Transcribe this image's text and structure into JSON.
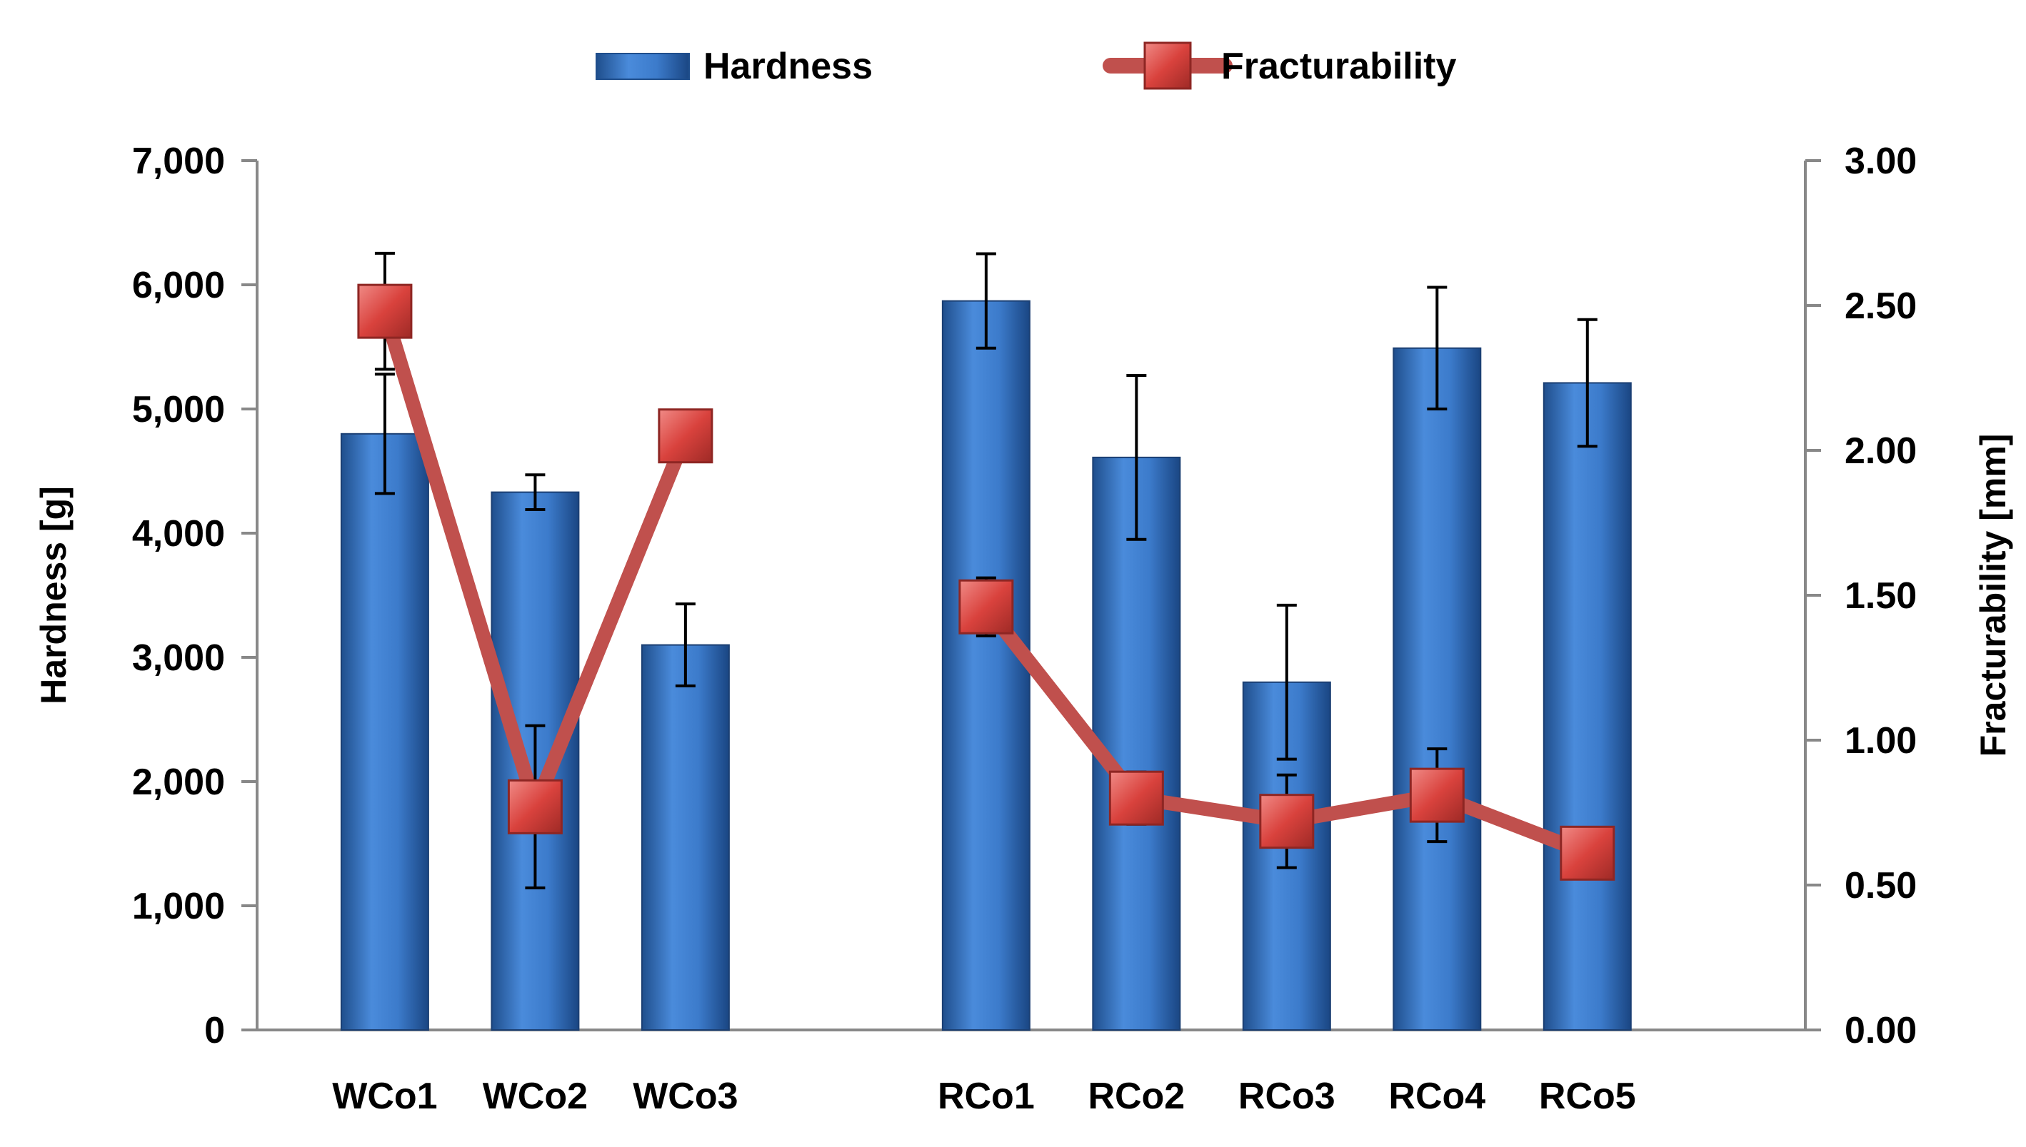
{
  "chart_data": {
    "type": "bar",
    "categories": [
      "WCo1",
      "WCo2",
      "WCo3",
      "",
      "RCo1",
      "RCo2",
      "RCo3",
      "RCo4",
      "RCo5"
    ],
    "series": [
      {
        "name": "Hardness",
        "kind": "bar",
        "axis": "left",
        "color": "#3A78C8",
        "values": [
          4800,
          4330,
          3100,
          null,
          5870,
          4610,
          2800,
          5490,
          5210
        ],
        "errors": [
          480,
          140,
          330,
          null,
          380,
          660,
          620,
          490,
          510
        ]
      },
      {
        "name": "Fracturability",
        "kind": "line",
        "axis": "right",
        "color": "#C0504D",
        "values": [
          2.48,
          0.77,
          2.05,
          null,
          1.46,
          0.8,
          0.72,
          0.81,
          0.61
        ],
        "errors": [
          0.2,
          0.28,
          0.08,
          null,
          0.1,
          0.09,
          0.16,
          0.16,
          0.07
        ]
      }
    ],
    "left_axis": {
      "label": "Hardness [g]",
      "ylim": [
        0,
        7000
      ],
      "ticks": [
        "0",
        "1,000",
        "2,000",
        "3,000",
        "4,000",
        "5,000",
        "6,000",
        "7,000"
      ]
    },
    "right_axis": {
      "label": "Fracturability [mm]",
      "ylim": [
        0,
        3
      ],
      "ticks": [
        "0.00",
        "0.50",
        "1.00",
        "1.50",
        "2.00",
        "2.50",
        "3.00"
      ]
    },
    "legend": {
      "position": "top-center",
      "entries": [
        "Hardness",
        "Fracturability"
      ]
    },
    "grid": false
  }
}
